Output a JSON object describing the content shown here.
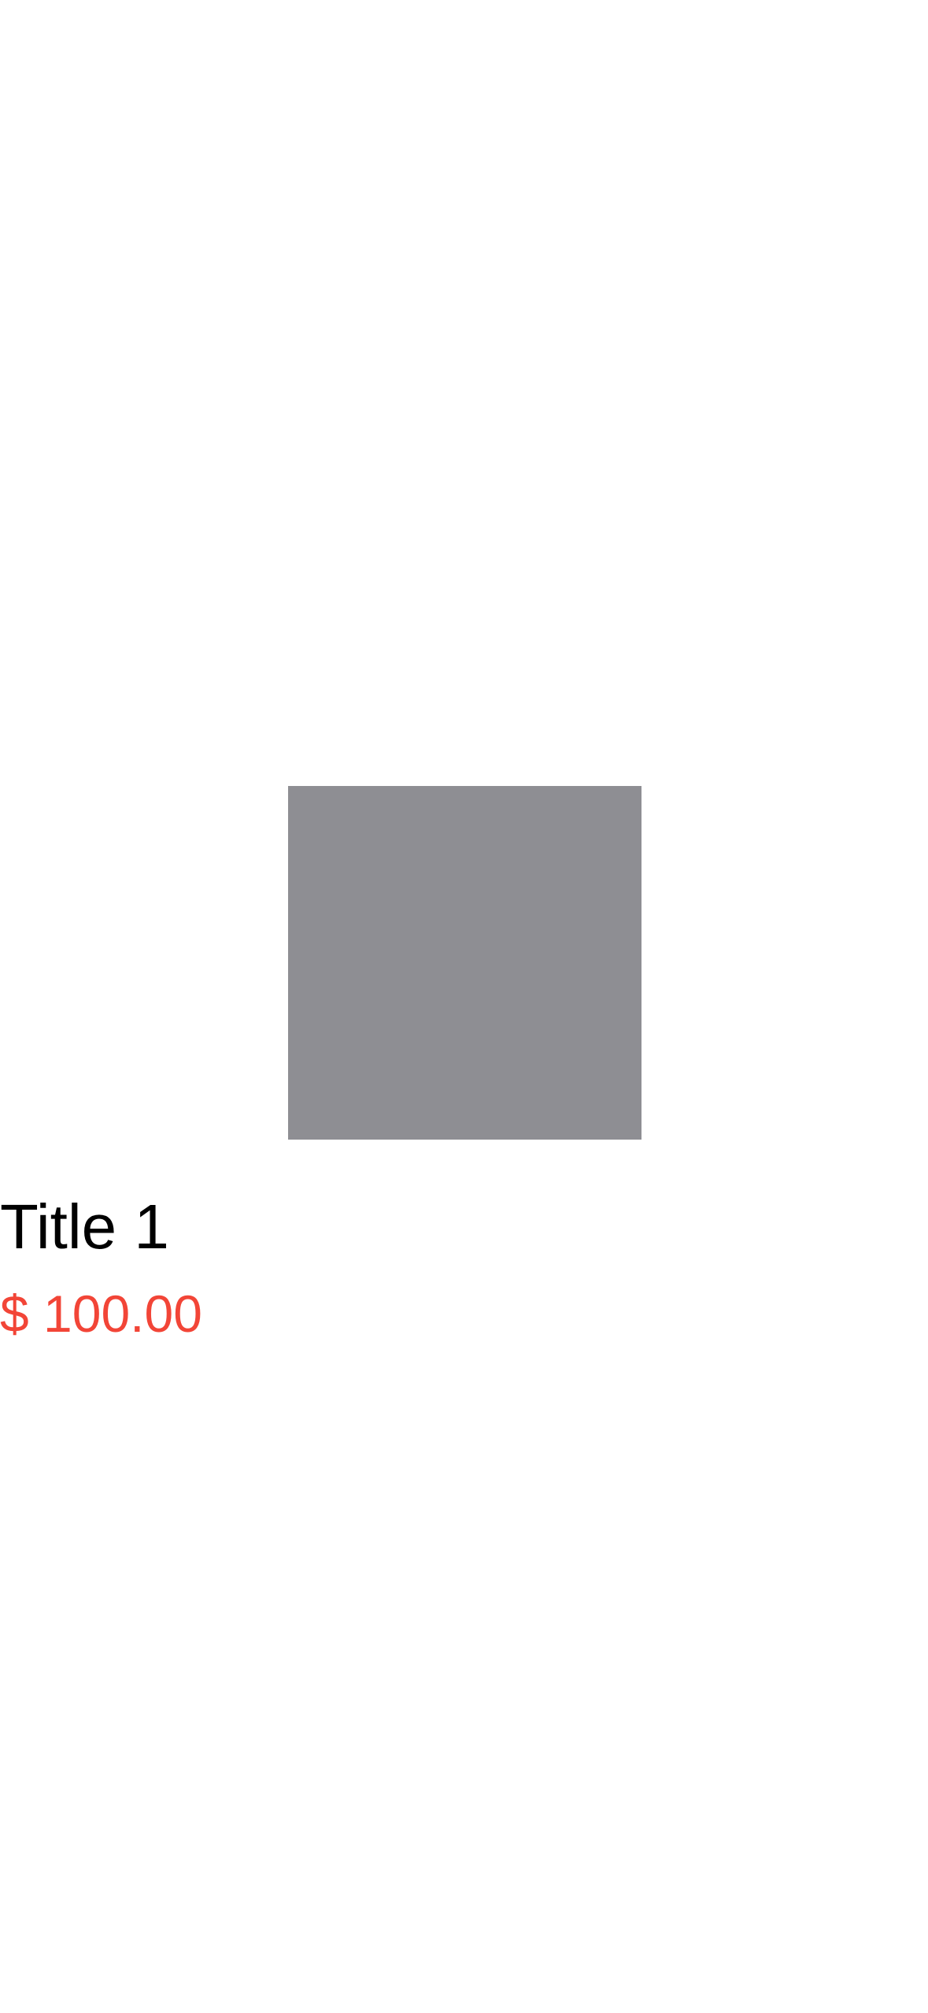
{
  "product": {
    "image_color": "#8e8e93",
    "title": "Title 1",
    "price": "$ 100.00",
    "price_color": "#f24537"
  }
}
